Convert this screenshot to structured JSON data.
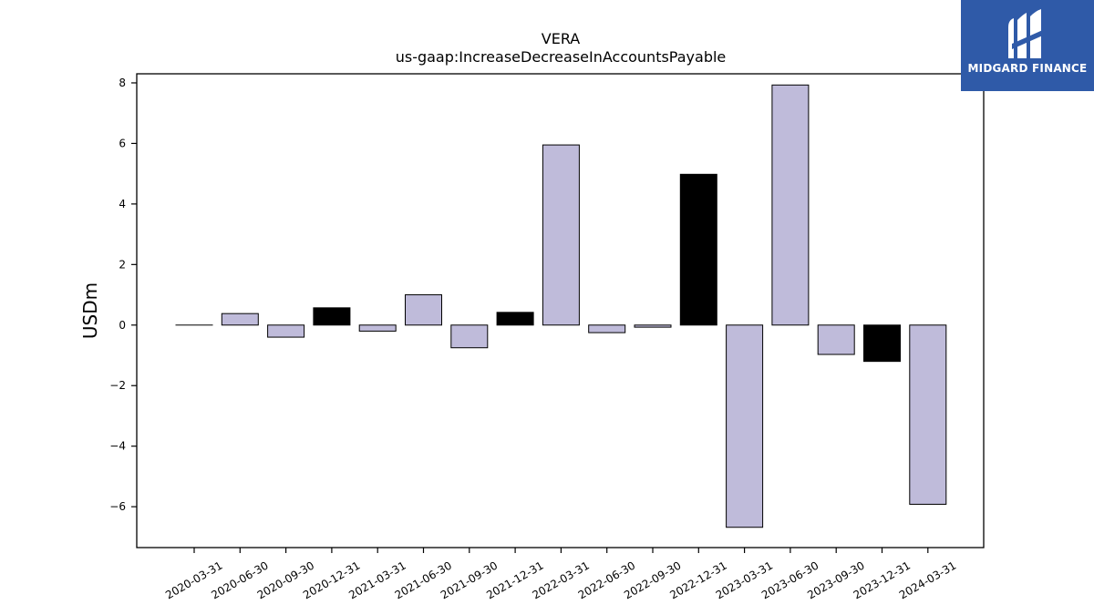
{
  "logo": {
    "text": "MIDGARD FINANCE",
    "icon": "midgard-logo-icon",
    "color": "#2f5aa8"
  },
  "chart_data": {
    "type": "bar",
    "title": "VERA",
    "subtitle": "us-gaap:IncreaseDecreaseInAccountsPayable",
    "xlabel": "",
    "ylabel": "USDm",
    "ylim": [
      -7.35,
      8.3
    ],
    "yticks": [
      -6,
      -4,
      -2,
      0,
      2,
      4,
      6,
      8
    ],
    "ytick_labels": [
      "−6",
      "−4",
      "−2",
      "0",
      "2",
      "4",
      "6",
      "8"
    ],
    "grid": false,
    "categories": [
      "2020-03-31",
      "2020-06-30",
      "2020-09-30",
      "2020-12-31",
      "2021-03-31",
      "2021-06-30",
      "2021-09-30",
      "2021-12-31",
      "2022-03-31",
      "2022-06-30",
      "2022-09-30",
      "2022-12-31",
      "2023-03-31",
      "2023-06-30",
      "2023-09-30",
      "2023-12-31",
      "2024-03-31"
    ],
    "values": [
      0.0,
      0.38,
      -0.4,
      0.57,
      -0.2,
      1.0,
      -0.75,
      0.42,
      5.95,
      -0.25,
      -0.07,
      4.98,
      -6.68,
      7.93,
      -0.97,
      -1.2,
      -5.92
    ],
    "colors": [
      "#bfbbda",
      "#bfbbda",
      "#bfbbda",
      "#000000",
      "#bfbbda",
      "#bfbbda",
      "#bfbbda",
      "#000000",
      "#bfbbda",
      "#bfbbda",
      "#bfbbda",
      "#000000",
      "#bfbbda",
      "#bfbbda",
      "#bfbbda",
      "#000000",
      "#bfbbda"
    ]
  }
}
